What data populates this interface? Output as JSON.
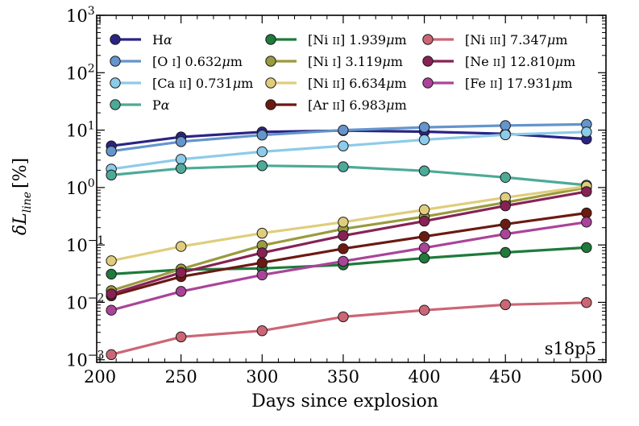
{
  "chart_data": {
    "type": "line",
    "title": "",
    "xlabel": "Days since explosion",
    "ylabel": "δL_line [%]",
    "ylabel_parts": {
      "main": "δL",
      "sub": "line",
      "unit": "[%]"
    },
    "yscale": "log",
    "xlim": [
      198,
      512
    ],
    "ylim": [
      0.0009,
      1000
    ],
    "xticks": [
      200,
      250,
      300,
      350,
      400,
      450,
      500
    ],
    "yticks": [
      {
        "value": 0.001,
        "base": "10",
        "exp": "−3"
      },
      {
        "value": 0.01,
        "base": "10",
        "exp": "−2"
      },
      {
        "value": 0.1,
        "base": "10",
        "exp": "−1"
      },
      {
        "value": 1,
        "base": "10",
        "exp": "0"
      },
      {
        "value": 10,
        "base": "10",
        "exp": "1"
      },
      {
        "value": 100,
        "base": "10",
        "exp": "2"
      },
      {
        "value": 1000,
        "base": "10",
        "exp": "3"
      }
    ],
    "annotation": "s18p5",
    "x": [
      207,
      250,
      300,
      350,
      400,
      450,
      500
    ],
    "series": [
      {
        "name": "Hα",
        "color": "#2b2384",
        "values": [
          5.3,
          7.6,
          9.3,
          9.8,
          9.4,
          8.6,
          7.0
        ]
      },
      {
        "name": "[O I] 0.632μm",
        "color": "#6495cc",
        "values": [
          4.3,
          6.3,
          8.2,
          10.0,
          11.2,
          12.0,
          12.6
        ]
      },
      {
        "name": "[Ca II] 0.731μm",
        "color": "#8ccbe9",
        "values": [
          2.1,
          3.1,
          4.2,
          5.3,
          6.8,
          8.3,
          9.3
        ]
      },
      {
        "name": "Pα",
        "color": "#4daa97",
        "values": [
          1.65,
          2.15,
          2.4,
          2.3,
          1.95,
          1.5,
          1.1
        ]
      },
      {
        "name": "[Ni II] 1.939μm",
        "color": "#1f7a3c",
        "values": [
          0.031,
          0.037,
          0.039,
          0.045,
          0.059,
          0.074,
          0.09
        ]
      },
      {
        "name": "[Ni I] 3.119μm",
        "color": "#9a9a3f",
        "values": [
          0.016,
          0.038,
          0.098,
          0.19,
          0.31,
          0.55,
          1.0
        ]
      },
      {
        "name": "[Ni II] 6.634μm",
        "color": "#e0cd7c",
        "values": [
          0.053,
          0.094,
          0.16,
          0.25,
          0.41,
          0.67,
          1.05
        ]
      },
      {
        "name": "[Ar II] 6.983μm",
        "color": "#6b1a12",
        "values": [
          0.013,
          0.028,
          0.049,
          0.086,
          0.14,
          0.23,
          0.36
        ]
      },
      {
        "name": "[Ni III] 7.347μm",
        "color": "#cc6675",
        "values": [
          0.00123,
          0.0025,
          0.0032,
          0.0056,
          0.0073,
          0.0091,
          0.0099
        ]
      },
      {
        "name": "[Ne II] 12.810μm",
        "color": "#882255",
        "values": [
          0.014,
          0.033,
          0.073,
          0.145,
          0.26,
          0.48,
          0.85
        ]
      },
      {
        "name": "[Fe II] 17.931μm",
        "color": "#aa4499",
        "values": [
          0.0073,
          0.0155,
          0.03,
          0.052,
          0.089,
          0.155,
          0.25
        ]
      }
    ],
    "legend": {
      "placement": "top-left",
      "columns": 3,
      "items": [
        {
          "label": "Hα",
          "parts": [
            [
              "H",
              "n"
            ],
            [
              "α",
              "i"
            ]
          ],
          "color": "#2b2384"
        },
        {
          "label": "[O I] 0.632μm",
          "parts": [
            [
              "[O ",
              "n"
            ],
            [
              "I",
              "sc"
            ],
            [
              "] 0.632",
              "n"
            ],
            [
              "μ",
              "i"
            ],
            [
              "m",
              "n"
            ]
          ],
          "color": "#6495cc"
        },
        {
          "label": "[Ca II] 0.731μm",
          "parts": [
            [
              "[Ca ",
              "n"
            ],
            [
              "II",
              "sc"
            ],
            [
              "] 0.731",
              "n"
            ],
            [
              "μ",
              "i"
            ],
            [
              "m",
              "n"
            ]
          ],
          "color": "#8ccbe9"
        },
        {
          "label": "Pα",
          "parts": [
            [
              "P",
              "n"
            ],
            [
              "α",
              "i"
            ]
          ],
          "color": "#4daa97"
        },
        {
          "label": "[Ni II] 1.939μm",
          "parts": [
            [
              "[Ni ",
              "n"
            ],
            [
              "II",
              "sc"
            ],
            [
              "] 1.939",
              "n"
            ],
            [
              "μ",
              "i"
            ],
            [
              "m",
              "n"
            ]
          ],
          "color": "#1f7a3c"
        },
        {
          "label": "[Ni I] 3.119μm",
          "parts": [
            [
              "[Ni ",
              "n"
            ],
            [
              "I",
              "sc"
            ],
            [
              "] 3.119",
              "n"
            ],
            [
              "μ",
              "i"
            ],
            [
              "m",
              "n"
            ]
          ],
          "color": "#9a9a3f"
        },
        {
          "label": "[Ni II] 6.634μm",
          "parts": [
            [
              "[Ni ",
              "n"
            ],
            [
              "II",
              "sc"
            ],
            [
              "] 6.634",
              "n"
            ],
            [
              "μ",
              "i"
            ],
            [
              "m",
              "n"
            ]
          ],
          "color": "#e0cd7c"
        },
        {
          "label": "[Ar II] 6.983μm",
          "parts": [
            [
              "[Ar ",
              "n"
            ],
            [
              "II",
              "sc"
            ],
            [
              "] 6.983",
              "n"
            ],
            [
              "μ",
              "i"
            ],
            [
              "m",
              "n"
            ]
          ],
          "color": "#6b1a12"
        },
        {
          "label": "[Ni III] 7.347μm",
          "parts": [
            [
              "[Ni ",
              "n"
            ],
            [
              "III",
              "sc"
            ],
            [
              "] 7.347",
              "n"
            ],
            [
              "μ",
              "i"
            ],
            [
              "m",
              "n"
            ]
          ],
          "color": "#cc6675"
        },
        {
          "label": "[Ne II] 12.810μm",
          "parts": [
            [
              "[Ne ",
              "n"
            ],
            [
              "II",
              "sc"
            ],
            [
              "] 12.810",
              "n"
            ],
            [
              "μ",
              "i"
            ],
            [
              "m",
              "n"
            ]
          ],
          "color": "#882255"
        },
        {
          "label": "[Fe II] 17.931μm",
          "parts": [
            [
              "[Fe ",
              "n"
            ],
            [
              "II",
              "sc"
            ],
            [
              "] 17.931",
              "n"
            ],
            [
              "μ",
              "i"
            ],
            [
              "m",
              "n"
            ]
          ],
          "color": "#aa4499"
        }
      ]
    }
  }
}
